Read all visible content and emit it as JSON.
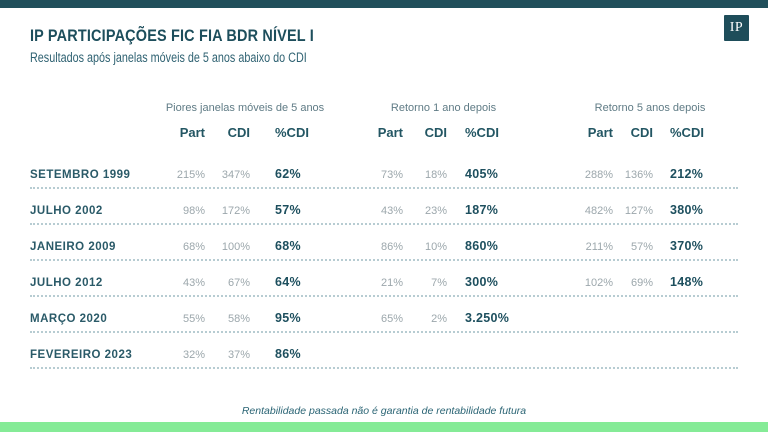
{
  "header": {
    "title": "IP PARTICIPAÇÕES FIC FIA BDR NÍVEL I",
    "subtitle": "Resultados após janelas móveis de 5 anos abaixo do CDI",
    "logo_text": "IP"
  },
  "table": {
    "groups": [
      {
        "label": "Piores janelas móveis de 5 anos"
      },
      {
        "label": "Retorno 1 ano depois"
      },
      {
        "label": "Retorno 5 anos depois"
      }
    ],
    "columns": [
      "Part",
      "CDI",
      "%CDI"
    ],
    "rows": [
      {
        "label": "SETEMBRO 1999",
        "values": [
          "215%",
          "347%",
          "62%",
          "73%",
          "18%",
          "405%",
          "288%",
          "136%",
          "212%"
        ]
      },
      {
        "label": "JULHO 2002",
        "values": [
          "98%",
          "172%",
          "57%",
          "43%",
          "23%",
          "187%",
          "482%",
          "127%",
          "380%"
        ]
      },
      {
        "label": "JANEIRO 2009",
        "values": [
          "68%",
          "100%",
          "68%",
          "86%",
          "10%",
          "860%",
          "211%",
          "57%",
          "370%"
        ]
      },
      {
        "label": "JULHO 2012",
        "values": [
          "43%",
          "67%",
          "64%",
          "21%",
          "7%",
          "300%",
          "102%",
          "69%",
          "148%"
        ]
      },
      {
        "label": "MARÇO 2020",
        "values": [
          "55%",
          "58%",
          "95%",
          "65%",
          "2%",
          "3.250%",
          "",
          "",
          ""
        ]
      },
      {
        "label": "FEVEREIRO 2023",
        "values": [
          "32%",
          "37%",
          "86%",
          "",
          "",
          "",
          "",
          "",
          ""
        ]
      }
    ]
  },
  "footer": {
    "disclaimer": "Rentabilidade passada não é garantia de rentabilidade futura"
  },
  "colors": {
    "accent_teal": "#1E4F5C",
    "top_bar": "#214F5B",
    "value_gray": "#9CA7AC",
    "dotted_line": "#B7CCD2",
    "bottom_bar_green": "#85EB97"
  }
}
